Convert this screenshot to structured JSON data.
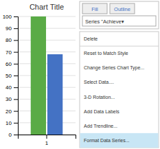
{
  "chart_data": {
    "type": "bar",
    "title": "Chart Title",
    "categories": [
      "1"
    ],
    "series": [
      {
        "color": "#5aab46",
        "values": [
          100
        ]
      },
      {
        "color": "#4472c4",
        "values": [
          68
        ]
      }
    ],
    "ylim": [
      0,
      100
    ],
    "yticks": [
      0,
      10,
      20,
      30,
      40,
      50,
      60,
      70,
      80,
      90,
      100
    ],
    "grid": true,
    "annotations": [
      "Fill",
      "Outline",
      "Series \"Achieve▾",
      "Delete",
      "Reset to Match Style",
      "Change Series Chart Type...",
      "Select Data....",
      "3-D Rotation...",
      "Add Data Labels",
      "Add Trendline...",
      "Format Data Series..."
    ]
  }
}
